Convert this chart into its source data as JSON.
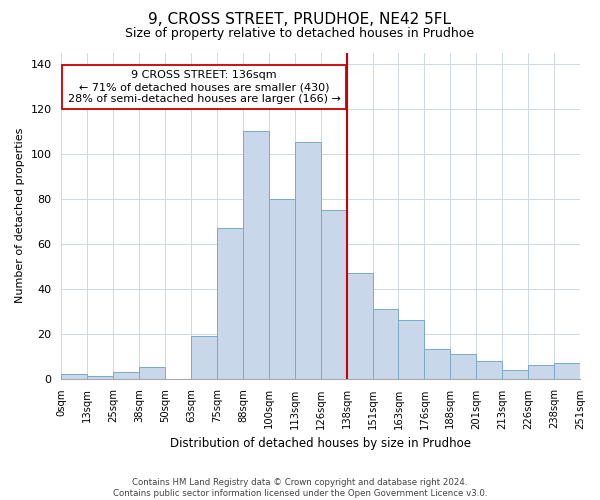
{
  "title": "9, CROSS STREET, PRUDHOE, NE42 5FL",
  "subtitle": "Size of property relative to detached houses in Prudhoe",
  "xlabel": "Distribution of detached houses by size in Prudhoe",
  "ylabel": "Number of detached properties",
  "bar_labels": [
    "0sqm",
    "13sqm",
    "25sqm",
    "38sqm",
    "50sqm",
    "63sqm",
    "75sqm",
    "88sqm",
    "100sqm",
    "113sqm",
    "126sqm",
    "138sqm",
    "151sqm",
    "163sqm",
    "176sqm",
    "188sqm",
    "201sqm",
    "213sqm",
    "226sqm",
    "238sqm",
    "251sqm"
  ],
  "bar_values": [
    2,
    1,
    3,
    5,
    0,
    19,
    67,
    110,
    80,
    105,
    75,
    47,
    31,
    26,
    13,
    11,
    8,
    4,
    6,
    7
  ],
  "bar_color": "#c8d8ea",
  "bar_edge_color": "#7aaac8",
  "vline_x": 11,
  "vline_color": "#cc0000",
  "annotation_title": "9 CROSS STREET: 136sqm",
  "annotation_line1": "← 71% of detached houses are smaller (430)",
  "annotation_line2": "28% of semi-detached houses are larger (166) →",
  "annotation_box_color": "#ffffff",
  "annotation_box_edge": "#cc0000",
  "ylim": [
    0,
    145
  ],
  "yticks": [
    0,
    20,
    40,
    60,
    80,
    100,
    120,
    140
  ],
  "footer1": "Contains HM Land Registry data © Crown copyright and database right 2024.",
  "footer2": "Contains public sector information licensed under the Open Government Licence v3.0."
}
